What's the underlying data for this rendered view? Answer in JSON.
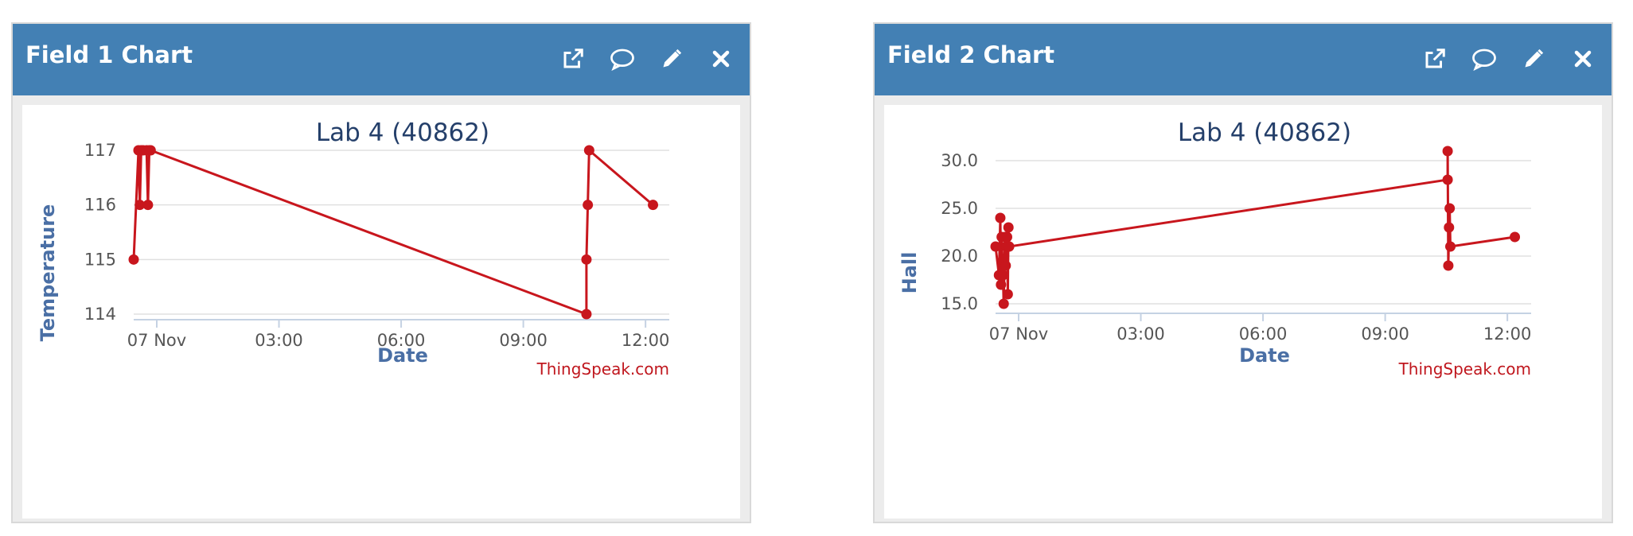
{
  "panels": [
    {
      "title": "Field 1 Chart"
    },
    {
      "title": "Field 2 Chart"
    }
  ],
  "credit": "ThingSpeak.com",
  "line_color": "#c8161d",
  "header_color": "#4380b4",
  "tools": [
    "external-link-icon",
    "comment-icon",
    "pencil-icon",
    "close-icon"
  ],
  "chart_data": [
    {
      "type": "line",
      "title": "Lab 4 (40862)",
      "xlabel": "Date",
      "ylabel": "Temperature",
      "xlim": [
        "2018-11-06 23:26",
        "2018-11-07 12:35"
      ],
      "ylim": [
        114,
        117
      ],
      "yticks": [
        "114",
        "115",
        "116",
        "117"
      ],
      "xticks": [
        {
          "t": "2018-11-07 00:00",
          "label": "07 Nov"
        },
        {
          "t": "2018-11-07 03:00",
          "label": "03:00"
        },
        {
          "t": "2018-11-07 06:00",
          "label": "06:00"
        },
        {
          "t": "2018-11-07 09:00",
          "label": "09:00"
        },
        {
          "t": "2018-11-07 12:00",
          "label": "12:00"
        }
      ],
      "grid": true,
      "series": [
        {
          "x": [
            "2018-11-06 23:26",
            "2018-11-06 23:33",
            "2018-11-06 23:35",
            "2018-11-06 23:37",
            "2018-11-06 23:40",
            "2018-11-06 23:45",
            "2018-11-06 23:47",
            "2018-11-06 23:49",
            "2018-11-06 23:51",
            "2018-11-07 10:33",
            "2018-11-07 10:33",
            "2018-11-07 10:35",
            "2018-11-07 10:37",
            "2018-11-07 12:11"
          ],
          "y": [
            115,
            117,
            116,
            117,
            117,
            117,
            116,
            117,
            117,
            114,
            115,
            116,
            117,
            116
          ]
        }
      ]
    },
    {
      "type": "line",
      "title": "Lab 4 (40862)",
      "xlabel": "Date",
      "ylabel": "Hall",
      "xlim": [
        "2018-11-06 23:26",
        "2018-11-07 12:35"
      ],
      "ylim": [
        15,
        30
      ],
      "yticks": [
        "15.0",
        "20.0",
        "25.0",
        "30.0"
      ],
      "xticks": [
        {
          "t": "2018-11-07 00:00",
          "label": "07 Nov"
        },
        {
          "t": "2018-11-07 03:00",
          "label": "03:00"
        },
        {
          "t": "2018-11-07 06:00",
          "label": "06:00"
        },
        {
          "t": "2018-11-07 09:00",
          "label": "09:00"
        },
        {
          "t": "2018-11-07 12:00",
          "label": "12:00"
        }
      ],
      "grid": true,
      "series": [
        {
          "x": [
            "2018-11-06 23:26",
            "2018-11-06 23:31",
            "2018-11-06 23:33",
            "2018-11-06 23:34",
            "2018-11-06 23:35",
            "2018-11-06 23:37",
            "2018-11-06 23:38",
            "2018-11-06 23:40",
            "2018-11-06 23:41",
            "2018-11-06 23:42",
            "2018-11-06 23:43",
            "2018-11-06 23:44",
            "2018-11-06 23:45",
            "2018-11-06 23:46",
            "2018-11-07 10:32",
            "2018-11-07 10:32",
            "2018-11-07 10:33",
            "2018-11-07 10:34",
            "2018-11-07 10:35",
            "2018-11-07 10:36",
            "2018-11-07 12:11"
          ],
          "y": [
            21,
            18,
            24,
            17,
            22,
            18,
            15,
            22,
            19,
            21,
            22,
            16,
            23,
            21,
            28,
            31,
            19,
            23,
            25,
            21,
            22
          ]
        }
      ]
    }
  ]
}
